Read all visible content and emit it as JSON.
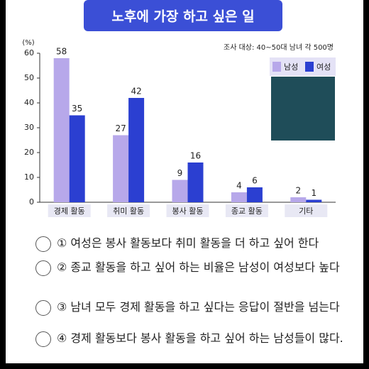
{
  "chart_data": {
    "type": "bar",
    "title": "노후에 가장 하고 싶은 일",
    "subtitle": "조사 대상: 40~50대 남녀 각 500명",
    "y_label": "(%)",
    "categories": [
      "경제 활동",
      "취미 활동",
      "봉사 활동",
      "종교 활동",
      "기타"
    ],
    "series": [
      {
        "name": "남성",
        "color": "#b7a8ea",
        "values": [
          58,
          27,
          9,
          4,
          2
        ]
      },
      {
        "name": "여성",
        "color": "#2b3fd1",
        "values": [
          35,
          42,
          16,
          6,
          1
        ]
      }
    ],
    "ylim": [
      0,
      60
    ],
    "yticks": [
      0,
      10,
      20,
      30,
      40,
      50,
      60
    ],
    "grid": false,
    "legend": "top-right"
  },
  "options": [
    "① 여성은 봉사 활동보다 취미 활동을 더 하고 싶어 한다",
    "② 종교 활동을 하고 싶어 하는 비율은 남성이 여성보다 높다",
    "③ 남녀 모두 경제 활동을 하고 싶다는 응답이 절반을 넘는다",
    "④ 경제 활동보다 봉사 활동을 하고 싶어 하는 남성들이 많다."
  ]
}
